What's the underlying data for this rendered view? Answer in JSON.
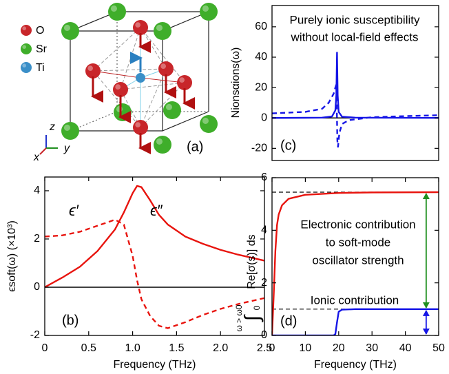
{
  "diagram": {
    "legend": [
      {
        "label": "O",
        "color": "#c8262a"
      },
      {
        "label": "Sr",
        "color": "#3fae2a"
      },
      {
        "label": "Ti",
        "color": "#3a8fc8"
      }
    ],
    "axis_labels": {
      "z": "z",
      "y": "y",
      "x": "x"
    },
    "panel_label": "(a)"
  },
  "chart_data": [
    {
      "type": "line",
      "panel_label": "(b)",
      "xlabel": "Frequency (THz)",
      "ylabel": "ϵsoft(ω) (×10³)",
      "xlim": [
        0,
        2.5
      ],
      "xticks": [
        0,
        0.5,
        {
          "value": 1,
          "label": "1.0"
        },
        1.5,
        {
          "value": 2,
          "label": "2.0"
        },
        2.5
      ],
      "ylim": [
        -2,
        4.57
      ],
      "yticks": [
        -2,
        0,
        2,
        4
      ],
      "zero_line": true,
      "series": [
        {
          "name": "ϵ″",
          "color": "#e8140e",
          "dashed": false,
          "x": [
            0,
            0.2,
            0.4,
            0.6,
            0.8,
            0.9,
            1.0,
            1.05,
            1.1,
            1.2,
            1.3,
            1.4,
            1.6,
            1.8,
            2.0,
            2.2,
            2.5
          ],
          "values": [
            0,
            0.4,
            0.85,
            1.5,
            2.4,
            3.1,
            3.9,
            4.2,
            4.15,
            3.6,
            3.0,
            2.6,
            2.1,
            1.8,
            1.55,
            1.35,
            1.1
          ]
        },
        {
          "name": "ϵ′",
          "color": "#e8140e",
          "dashed": true,
          "x": [
            0,
            0.2,
            0.4,
            0.6,
            0.8,
            0.9,
            1.0,
            1.05,
            1.1,
            1.2,
            1.3,
            1.4,
            1.6,
            1.8,
            2.0,
            2.2,
            2.5
          ],
          "values": [
            2.1,
            2.15,
            2.3,
            2.55,
            2.8,
            2.6,
            1.3,
            0.3,
            -0.5,
            -1.2,
            -1.6,
            -1.7,
            -1.45,
            -1.15,
            -0.9,
            -0.7,
            -0.45
          ]
        }
      ]
    },
    {
      "type": "line",
      "panel_label": "(c)",
      "ylabel": "Nionsαions(ω)",
      "xlim": [
        0,
        50
      ],
      "ylim": [
        -28,
        74
      ],
      "yticks": [
        -20,
        0,
        20,
        40,
        60
      ],
      "zero_line": true,
      "annotations": [
        {
          "lines": [
            "Purely ionic susceptibility",
            "without local-field effects"
          ],
          "color": "#1515e6"
        }
      ],
      "series": [
        {
          "color": "#1515e6",
          "dashed": false,
          "x": [
            0,
            10,
            15,
            18,
            19,
            19.3,
            19.5,
            19.7,
            20,
            21,
            25,
            50
          ],
          "values": [
            0,
            0.1,
            0.2,
            1,
            5,
            15,
            43,
            15,
            4,
            0.8,
            0.2,
            0
          ]
        },
        {
          "color": "#1515e6",
          "dashed": true,
          "x": [
            0,
            10,
            15,
            17,
            18.5,
            19,
            19.3,
            19.45,
            19.6,
            19.8,
            20.2,
            21,
            23,
            30,
            40,
            50
          ],
          "values": [
            3,
            4,
            6,
            10,
            16,
            20,
            22,
            5,
            -15,
            -19,
            -10,
            -4,
            -1.5,
            0.5,
            1.2,
            1.8
          ]
        }
      ]
    },
    {
      "type": "line",
      "panel_label": "(d)",
      "xlabel": "Frequency (THz)",
      "ylabel": {
        "integral": "∫",
        "lower": "0",
        "upper": "ω > ω0",
        "integrand": "Re[σ(s)] ds"
      },
      "xlim": [
        0,
        50
      ],
      "xticks": [
        0,
        10,
        20,
        30,
        40,
        50
      ],
      "ylim": [
        0,
        6
      ],
      "yticks": [
        0,
        2,
        4,
        6
      ],
      "reference_lines": [
        5.45,
        1.0
      ],
      "annotations": [
        {
          "lines": [
            "Electronic contribution",
            "to soft-mode",
            "oscillator strength"
          ],
          "color": "#1f8f1f"
        },
        {
          "lines": [
            "Ionic contribution"
          ],
          "color": "#1515e6"
        }
      ],
      "series": [
        {
          "color": "#e8140e",
          "dashed": false,
          "x": [
            0,
            0.5,
            1,
            1.5,
            2,
            3,
            5,
            10,
            20,
            30,
            50
          ],
          "values": [
            0,
            1.5,
            3.2,
            4.2,
            4.6,
            4.95,
            5.2,
            5.35,
            5.42,
            5.44,
            5.45
          ]
        },
        {
          "color": "#1515e6",
          "dashed": false,
          "x": [
            0,
            18.5,
            19,
            19.5,
            20,
            21,
            25,
            50
          ],
          "values": [
            0,
            0,
            0.05,
            0.5,
            0.9,
            0.98,
            1.0,
            1.0
          ]
        }
      ]
    }
  ]
}
